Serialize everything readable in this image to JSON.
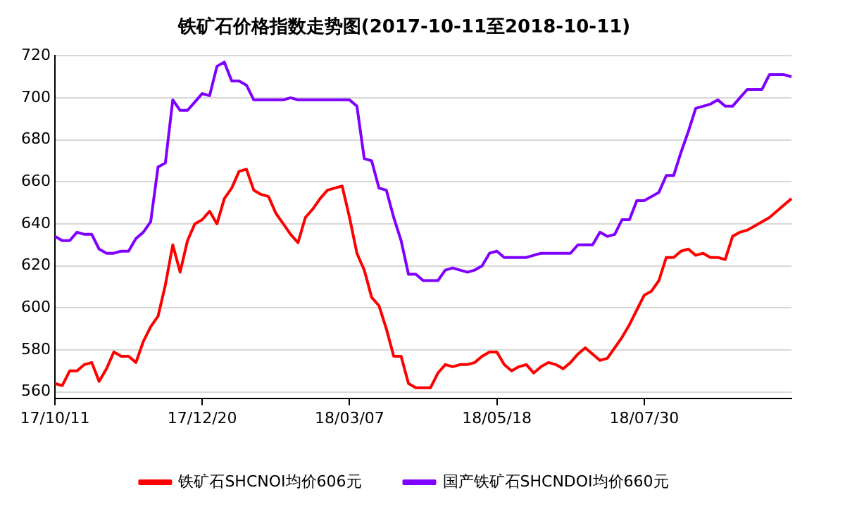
{
  "chart_data": {
    "type": "line",
    "title": "铁矿石价格指数走势图(2017-10-11至2018-10-11)",
    "categories": [
      "17/10/11",
      null,
      null,
      null,
      null,
      null,
      null,
      null,
      null,
      null,
      null,
      null,
      null,
      null,
      null,
      null,
      null,
      null,
      null,
      null,
      "17/12/20",
      null,
      null,
      null,
      null,
      null,
      null,
      null,
      null,
      null,
      null,
      null,
      null,
      null,
      null,
      null,
      null,
      null,
      null,
      null,
      "18/03/07",
      null,
      null,
      null,
      null,
      null,
      null,
      null,
      null,
      null,
      null,
      null,
      null,
      null,
      null,
      null,
      null,
      null,
      null,
      null,
      "18/05/18",
      null,
      null,
      null,
      null,
      null,
      null,
      null,
      null,
      null,
      null,
      null,
      null,
      null,
      null,
      null,
      null,
      null,
      null,
      null,
      "18/07/30",
      null,
      null,
      null,
      null,
      null,
      null,
      null,
      null,
      null,
      null,
      null,
      null,
      null,
      null,
      null,
      null,
      null,
      null,
      null,
      null
    ],
    "series": [
      {
        "name": "铁矿石SHCNOI均价606元",
        "color": "#ff0000",
        "values": [
          564,
          563,
          570,
          570,
          573,
          574,
          565,
          571,
          579,
          577,
          577,
          574,
          584,
          591,
          596,
          611,
          630,
          617,
          632,
          640,
          642,
          646,
          640,
          652,
          657,
          665,
          666,
          656,
          654,
          653,
          645,
          640,
          635,
          631,
          643,
          647,
          652,
          656,
          657,
          658,
          643,
          626,
          618,
          605,
          601,
          590,
          577,
          577,
          564,
          562,
          562,
          562,
          569,
          573,
          572,
          573,
          573,
          574,
          577,
          579,
          579,
          573,
          570,
          572,
          573,
          569,
          572,
          574,
          573,
          571,
          574,
          578,
          581,
          578,
          575,
          576,
          581,
          586,
          592,
          599,
          606,
          608,
          613,
          624,
          624,
          627,
          628,
          625,
          626,
          624,
          624,
          623,
          634,
          636,
          637,
          639,
          641,
          643,
          646,
          649,
          652
        ]
      },
      {
        "name": "国产铁矿石SHCNDOI均价660元",
        "color": "#8000ff",
        "values": [
          634,
          632,
          632,
          636,
          635,
          635,
          628,
          626,
          626,
          627,
          627,
          633,
          636,
          641,
          667,
          669,
          699,
          694,
          694,
          698,
          702,
          701,
          715,
          717,
          708,
          708,
          706,
          699,
          699,
          699,
          699,
          699,
          700,
          699,
          699,
          699,
          699,
          699,
          699,
          699,
          699,
          696,
          671,
          670,
          657,
          656,
          643,
          632,
          616,
          616,
          613,
          613,
          613,
          618,
          619,
          618,
          617,
          618,
          620,
          626,
          627,
          624,
          624,
          624,
          624,
          625,
          626,
          626,
          626,
          626,
          626,
          630,
          630,
          630,
          636,
          634,
          635,
          642,
          642,
          651,
          651,
          653,
          655,
          663,
          663,
          674,
          684,
          695,
          696,
          697,
          699,
          696,
          696,
          700,
          704,
          704,
          704,
          711,
          711,
          711,
          710
        ]
      }
    ],
    "ylim": [
      557,
      720
    ],
    "yticks": [
      560,
      580,
      600,
      620,
      640,
      660,
      680,
      700,
      720
    ],
    "grid": "y",
    "legend": "bottom",
    "marker": "none",
    "line_style": "solid"
  }
}
